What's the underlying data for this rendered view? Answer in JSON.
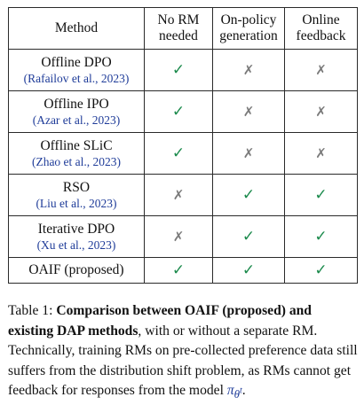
{
  "table": {
    "headers": {
      "method": "Method",
      "no_rm_line1": "No RM",
      "no_rm_line2": "needed",
      "on_policy_line1": "On-policy",
      "on_policy_line2": "generation",
      "online_line1": "Online",
      "online_line2": "feedback"
    },
    "rows": [
      {
        "method": "Offline DPO",
        "citation": "(Rafailov et al., 2023)",
        "no_rm": "✓",
        "on_policy": "✗",
        "online": "✗"
      },
      {
        "method": "Offline IPO",
        "citation": "(Azar et al., 2023)",
        "no_rm": "✓",
        "on_policy": "✗",
        "online": "✗"
      },
      {
        "method": "Offline SLiC",
        "citation": "(Zhao et al., 2023)",
        "no_rm": "✓",
        "on_policy": "✗",
        "online": "✗"
      },
      {
        "method": "RSO",
        "citation": "(Liu et al., 2023)",
        "no_rm": "✗",
        "on_policy": "✓",
        "online": "✓"
      },
      {
        "method": "Iterative DPO",
        "citation": "(Xu et al., 2023)",
        "no_rm": "✗",
        "on_policy": "✓",
        "online": "✓"
      },
      {
        "method": "OAIF (proposed)",
        "citation": "",
        "no_rm": "✓",
        "on_policy": "✓",
        "online": "✓"
      }
    ]
  },
  "caption": {
    "label": "Table 1:",
    "bold": "Comparison between OAIF (proposed) and existing DAP methods",
    "text": ", with or without a separate RM. Technically, training RMs on pre-collected preference data still suffers from the distribution shift problem, as RMs cannot get feedback for responses from the model ",
    "math_symbol": "π",
    "math_sub": "θ",
    "math_sup": "t",
    "end": "."
  },
  "colors": {
    "check": "#1b8a4c",
    "cross": "#7a7a7a",
    "citation": "#1f3c99"
  }
}
